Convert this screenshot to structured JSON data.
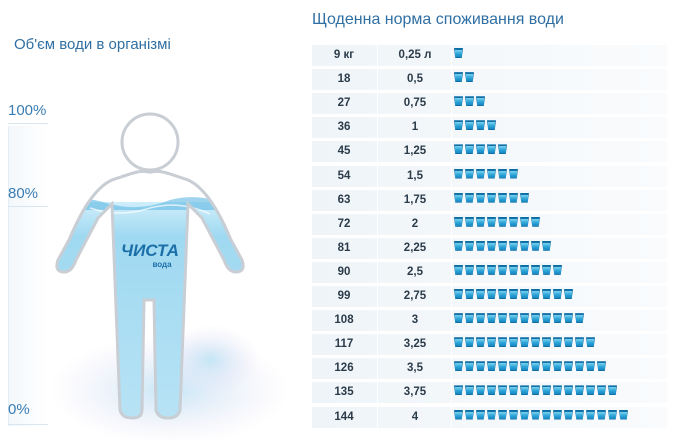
{
  "left_title": "Об'єм води в організмі",
  "right_title": "Щоденна норма споживання води",
  "scale": {
    "top": "100%",
    "mid": "80%",
    "bottom": "0%"
  },
  "logo": {
    "brand": "ЧИСТА",
    "sub": "вода"
  },
  "rows": [
    {
      "kg": "9 кг",
      "l": "0,25 л",
      "cups": 1
    },
    {
      "kg": "18",
      "l": "0,5",
      "cups": 2
    },
    {
      "kg": "27",
      "l": "0,75",
      "cups": 3
    },
    {
      "kg": "36",
      "l": "1",
      "cups": 4
    },
    {
      "kg": "45",
      "l": "1,25",
      "cups": 5
    },
    {
      "kg": "54",
      "l": "1,5",
      "cups": 6
    },
    {
      "kg": "63",
      "l": "1,75",
      "cups": 7
    },
    {
      "kg": "72",
      "l": "2",
      "cups": 8
    },
    {
      "kg": "81",
      "l": "2,25",
      "cups": 9
    },
    {
      "kg": "90",
      "l": "2,5",
      "cups": 10
    },
    {
      "kg": "99",
      "l": "2,75",
      "cups": 11
    },
    {
      "kg": "108",
      "l": "3",
      "cups": 12
    },
    {
      "kg": "117",
      "l": "3,25",
      "cups": 13
    },
    {
      "kg": "126",
      "l": "3,5",
      "cups": 14
    },
    {
      "kg": "135",
      "l": "3,75",
      "cups": 15
    },
    {
      "kg": "144",
      "l": "4",
      "cups": 16
    }
  ],
  "colors": {
    "water": "#2aa3d8",
    "accent": "#2f6fa3",
    "cup_border": "#0f6fa7"
  }
}
